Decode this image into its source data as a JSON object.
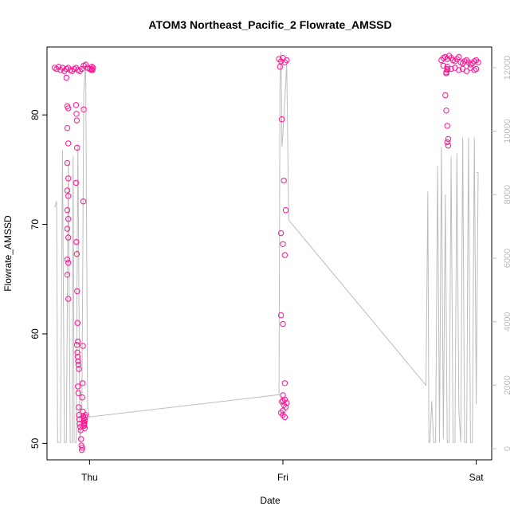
{
  "chart_data": {
    "type": "scatter",
    "title": "ATOM3 Northeast_Pacific_2 Flowrate_AMSSD",
    "xlabel": "Date",
    "ylabel": "Flowrate_AMSSD",
    "x_tick_labels": [
      "Thu",
      "Fri",
      "Sat"
    ],
    "x_ticks_days": [
      0,
      1,
      2
    ],
    "xlim_days": [
      -0.22,
      2.08
    ],
    "ylim": [
      48.5,
      86.2
    ],
    "y_ticks": [
      50,
      60,
      70,
      80
    ],
    "y2_ticks": [
      0,
      2000,
      4000,
      6000,
      8000,
      10000,
      12000
    ],
    "y2lim": [
      -350,
      12650
    ],
    "grid": false,
    "series": [
      {
        "color": "#ff1493",
        "x": [
          -0.18,
          -0.17,
          -0.16,
          -0.15,
          -0.14,
          -0.13,
          -0.12,
          -0.11,
          -0.1,
          -0.09,
          -0.08,
          -0.07,
          -0.06,
          -0.05,
          -0.04,
          -0.03,
          -0.02,
          -0.01,
          0.0,
          0.01,
          -0.12,
          -0.115,
          -0.11,
          -0.115,
          -0.11,
          -0.115,
          -0.11,
          -0.115,
          -0.11,
          -0.115,
          -0.11,
          -0.115,
          -0.11,
          -0.115,
          -0.11,
          -0.115,
          -0.11,
          -0.07,
          -0.068,
          -0.066,
          -0.064,
          -0.07,
          -0.068,
          -0.066,
          -0.064,
          -0.062,
          -0.06,
          -0.065,
          -0.063,
          -0.061,
          -0.059,
          -0.057,
          -0.055,
          -0.06,
          -0.058,
          -0.056,
          -0.054,
          -0.052,
          -0.05,
          -0.048,
          -0.046,
          -0.044,
          -0.042,
          -0.04,
          -0.038,
          -0.03,
          -0.032,
          -0.034,
          -0.036,
          -0.038,
          -0.035,
          -0.033,
          -0.031,
          -0.029,
          -0.027,
          -0.025,
          -0.03,
          -0.028,
          -0.026,
          -0.024,
          -0.022,
          -0.02,
          0.01,
          0.012,
          0.015,
          0.018,
          0.98,
          0.99,
          1.0,
          1.01,
          1.02,
          0.985,
          0.995,
          1.005,
          1.015,
          0.99,
          1.0,
          1.01,
          0.99,
          1.0,
          1.01,
          1.0,
          1.01,
          0.995,
          1.005,
          1.015,
          1.0,
          0.99,
          1.0,
          1.01,
          1.02,
          1.0,
          1.82,
          1.83,
          1.84,
          1.85,
          1.86,
          1.87,
          1.88,
          1.89,
          1.9,
          1.91,
          1.92,
          1.93,
          1.94,
          1.95,
          1.96,
          1.97,
          1.98,
          1.99,
          2.0,
          2.01,
          1.83,
          1.85,
          1.87,
          1.89,
          1.91,
          1.93,
          1.95,
          1.97,
          1.99,
          2.0,
          1.84,
          1.845,
          1.85,
          1.855,
          1.85,
          1.855,
          1.85,
          1.845,
          1.85,
          1.845
        ],
        "y": [
          84.3,
          84.2,
          84.4,
          84.1,
          84.3,
          84.0,
          84.2,
          84.3,
          84.1,
          84.0,
          84.2,
          84.3,
          84.1,
          84.0,
          84.2,
          84.5,
          84.6,
          84.3,
          84.2,
          84.1,
          83.4,
          80.8,
          80.6,
          78.8,
          77.4,
          75.6,
          74.2,
          73.1,
          72.6,
          71.3,
          70.5,
          69.6,
          68.8,
          66.8,
          66.5,
          65.4,
          63.2,
          80.9,
          80.1,
          79.5,
          77.0,
          73.8,
          68.4,
          67.3,
          63.9,
          61.0,
          59.3,
          59.0,
          58.3,
          57.9,
          57.5,
          57.2,
          56.8,
          55.2,
          54.6,
          53.3,
          52.6,
          52.2,
          51.8,
          51.5,
          51.2,
          50.4,
          49.8,
          49.4,
          49.6,
          80.5,
          72.1,
          58.9,
          55.5,
          54.2,
          52.9,
          52.5,
          52.0,
          51.8,
          51.6,
          51.4,
          52.3,
          51.7,
          51.9,
          52.1,
          52.4,
          52.6,
          84.2,
          84.4,
          84.1,
          84.3,
          85.1,
          84.9,
          85.2,
          84.8,
          85.0,
          84.4,
          79.6,
          74.0,
          71.3,
          69.2,
          68.2,
          67.2,
          61.7,
          60.9,
          55.5,
          54.4,
          54.0,
          53.8,
          53.5,
          53.3,
          53.0,
          52.8,
          52.6,
          52.4,
          53.7,
          53.9,
          85.0,
          85.2,
          85.3,
          85.1,
          85.4,
          85.2,
          85.0,
          84.9,
          85.1,
          85.3,
          84.8,
          84.7,
          84.9,
          85.0,
          84.8,
          84.6,
          84.7,
          84.9,
          85.0,
          84.8,
          84.5,
          84.4,
          84.2,
          84.3,
          84.1,
          84.2,
          84.0,
          84.3,
          84.1,
          84.2,
          81.8,
          80.4,
          79.0,
          77.8,
          77.5,
          77.2,
          84.2,
          83.9,
          84.1,
          83.8
        ]
      },
      {
        "color": "#bdbdbd",
        "axis": "right",
        "line": true,
        "x": [
          -0.18,
          -0.17,
          -0.165,
          -0.15,
          -0.14,
          -0.13,
          -0.12,
          -0.11,
          -0.1,
          -0.09,
          -0.085,
          -0.08,
          -0.07,
          -0.06,
          -0.05,
          -0.04,
          -0.03,
          -0.02,
          -0.01,
          0.0,
          0.98,
          0.985,
          0.99,
          0.995,
          1.0,
          1.01,
          1.02,
          1.03,
          1.74,
          1.75,
          1.755,
          1.76,
          1.77,
          1.78,
          1.79,
          1.8,
          1.81,
          1.82,
          1.83,
          1.84,
          1.85,
          1.86,
          1.87,
          1.88,
          1.89,
          1.9,
          1.91,
          1.92,
          1.93,
          1.94,
          1.95,
          1.96,
          1.97,
          1.98,
          1.99,
          2.0,
          2.01,
          2.0
        ],
        "y": [
          7600,
          7800,
          200,
          200,
          9400,
          200,
          200,
          9000,
          200,
          200,
          9200,
          200,
          200,
          9600,
          200,
          1000,
          11200,
          12200,
          1300,
          1000,
          1700,
          11400,
          12500,
          9500,
          9900,
          11000,
          12100,
          7200,
          2000,
          8100,
          200,
          200,
          1500,
          200,
          200,
          8900,
          200,
          9500,
          300,
          8000,
          200,
          200,
          9200,
          200,
          200,
          9300,
          1200,
          200,
          9800,
          200,
          200,
          9800,
          200,
          200,
          9800,
          1400,
          8700,
          8700
        ]
      }
    ]
  }
}
